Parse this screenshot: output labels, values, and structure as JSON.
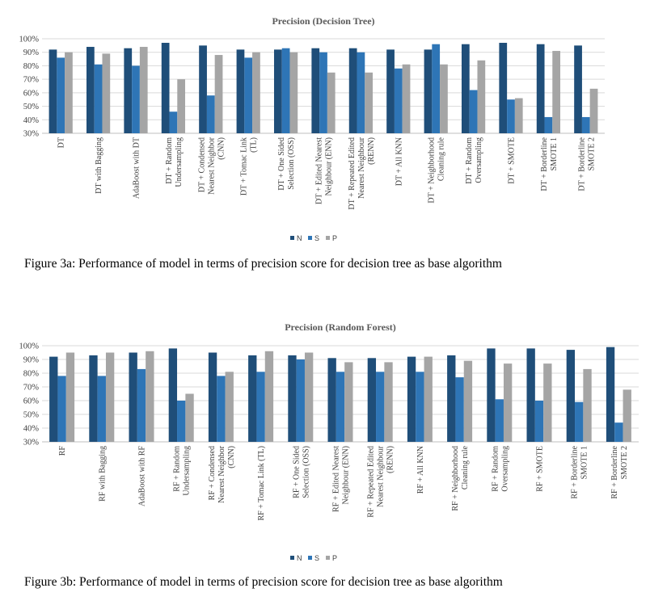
{
  "colors": {
    "N": "#1f4e79",
    "S": "#2e75b6",
    "P": "#a5a5a5"
  },
  "legend": [
    "N",
    "S",
    "P"
  ],
  "captions": [
    "Figure 3a: Performance of model in terms of precision score for decision tree as base algorithm",
    "Figure 3b: Performance of model in terms of precision score for decision tree as base algorithm"
  ],
  "chart_data": [
    {
      "type": "bar",
      "title": "Precision (Decision Tree)",
      "xlabel": "",
      "ylabel": "",
      "ylim": [
        30,
        100
      ],
      "yticks": [
        "30%",
        "40%",
        "50%",
        "60%",
        "70%",
        "80%",
        "90%",
        "100%"
      ],
      "grid": true,
      "legend_position": "bottom",
      "categories": [
        [
          "DT"
        ],
        [
          "DT with Bagging"
        ],
        [
          "AdaBoost with DT"
        ],
        [
          "DT + Random",
          "Undersampling"
        ],
        [
          "DT + Condensed",
          "Nearest Neighbor",
          "(CNN)"
        ],
        [
          "DT + Tomac Link",
          "(TL)"
        ],
        [
          "DT + One Sided",
          "Selection (OSS)"
        ],
        [
          "DT + Edited Nearest",
          "Neighbour (ENN)"
        ],
        [
          "DT + Repeated Edited",
          "Nearest Neighbour",
          "(RENN)"
        ],
        [
          "DT + All KNN"
        ],
        [
          "DT + Neighborhood",
          "Cleaning rule"
        ],
        [
          "DT + Random",
          "Oversampling"
        ],
        [
          "DT + SMOTE"
        ],
        [
          "DT + Borderline",
          "SMOTE 1"
        ],
        [
          "DT + Borderline",
          "SMOTE 2"
        ]
      ],
      "series": [
        {
          "name": "N",
          "values": [
            92,
            94,
            93,
            97,
            95,
            92,
            92,
            93,
            93,
            92,
            92,
            96,
            97,
            96,
            95
          ]
        },
        {
          "name": "S",
          "values": [
            86,
            81,
            80,
            46,
            58,
            86,
            93,
            90,
            90,
            78,
            96,
            62,
            55,
            42,
            42
          ]
        },
        {
          "name": "P",
          "values": [
            90,
            89,
            94,
            70,
            88,
            90,
            90,
            75,
            75,
            81,
            81,
            84,
            56,
            91,
            63
          ]
        }
      ]
    },
    {
      "type": "bar",
      "title": "Precision (Random Forest)",
      "xlabel": "",
      "ylabel": "",
      "ylim": [
        30,
        100
      ],
      "yticks": [
        "30%",
        "40%",
        "50%",
        "60%",
        "70%",
        "80%",
        "90%",
        "100%"
      ],
      "grid": true,
      "legend_position": "bottom",
      "categories": [
        [
          "RF"
        ],
        [
          "RF with Bagging"
        ],
        [
          "AdaBoost with RF"
        ],
        [
          "RF + Random",
          "Undersampling"
        ],
        [
          "RF + Condensed",
          "Nearest Neighbor",
          "(CNN)"
        ],
        [
          "RF + Tomac Link (TL)"
        ],
        [
          "RF + One Sided",
          "Selection (OSS)"
        ],
        [
          "RF + Edited Nearest",
          "Neighbour (ENN)"
        ],
        [
          "RF + Repeated Edited",
          "Nearest Neighbour",
          "(RENN)"
        ],
        [
          "RF + All KNN"
        ],
        [
          "RF + Neighborhood",
          "Cleaning rule"
        ],
        [
          "RF + Random",
          "Oversampling"
        ],
        [
          "RF + SMOTE"
        ],
        [
          "RF + Borderline",
          "SMOTE 1"
        ],
        [
          "RF + Borderline",
          "SMOTE 2"
        ]
      ],
      "series": [
        {
          "name": "N",
          "values": [
            92,
            93,
            95,
            98,
            95,
            93,
            93,
            91,
            91,
            92,
            93,
            98,
            98,
            97,
            99
          ]
        },
        {
          "name": "S",
          "values": [
            78,
            78,
            83,
            60,
            78,
            81,
            90,
            81,
            81,
            81,
            77,
            61,
            60,
            59,
            44
          ]
        },
        {
          "name": "P",
          "values": [
            95,
            95,
            96,
            65,
            81,
            96,
            95,
            88,
            88,
            92,
            89,
            87,
            87,
            83,
            68
          ]
        }
      ]
    }
  ]
}
